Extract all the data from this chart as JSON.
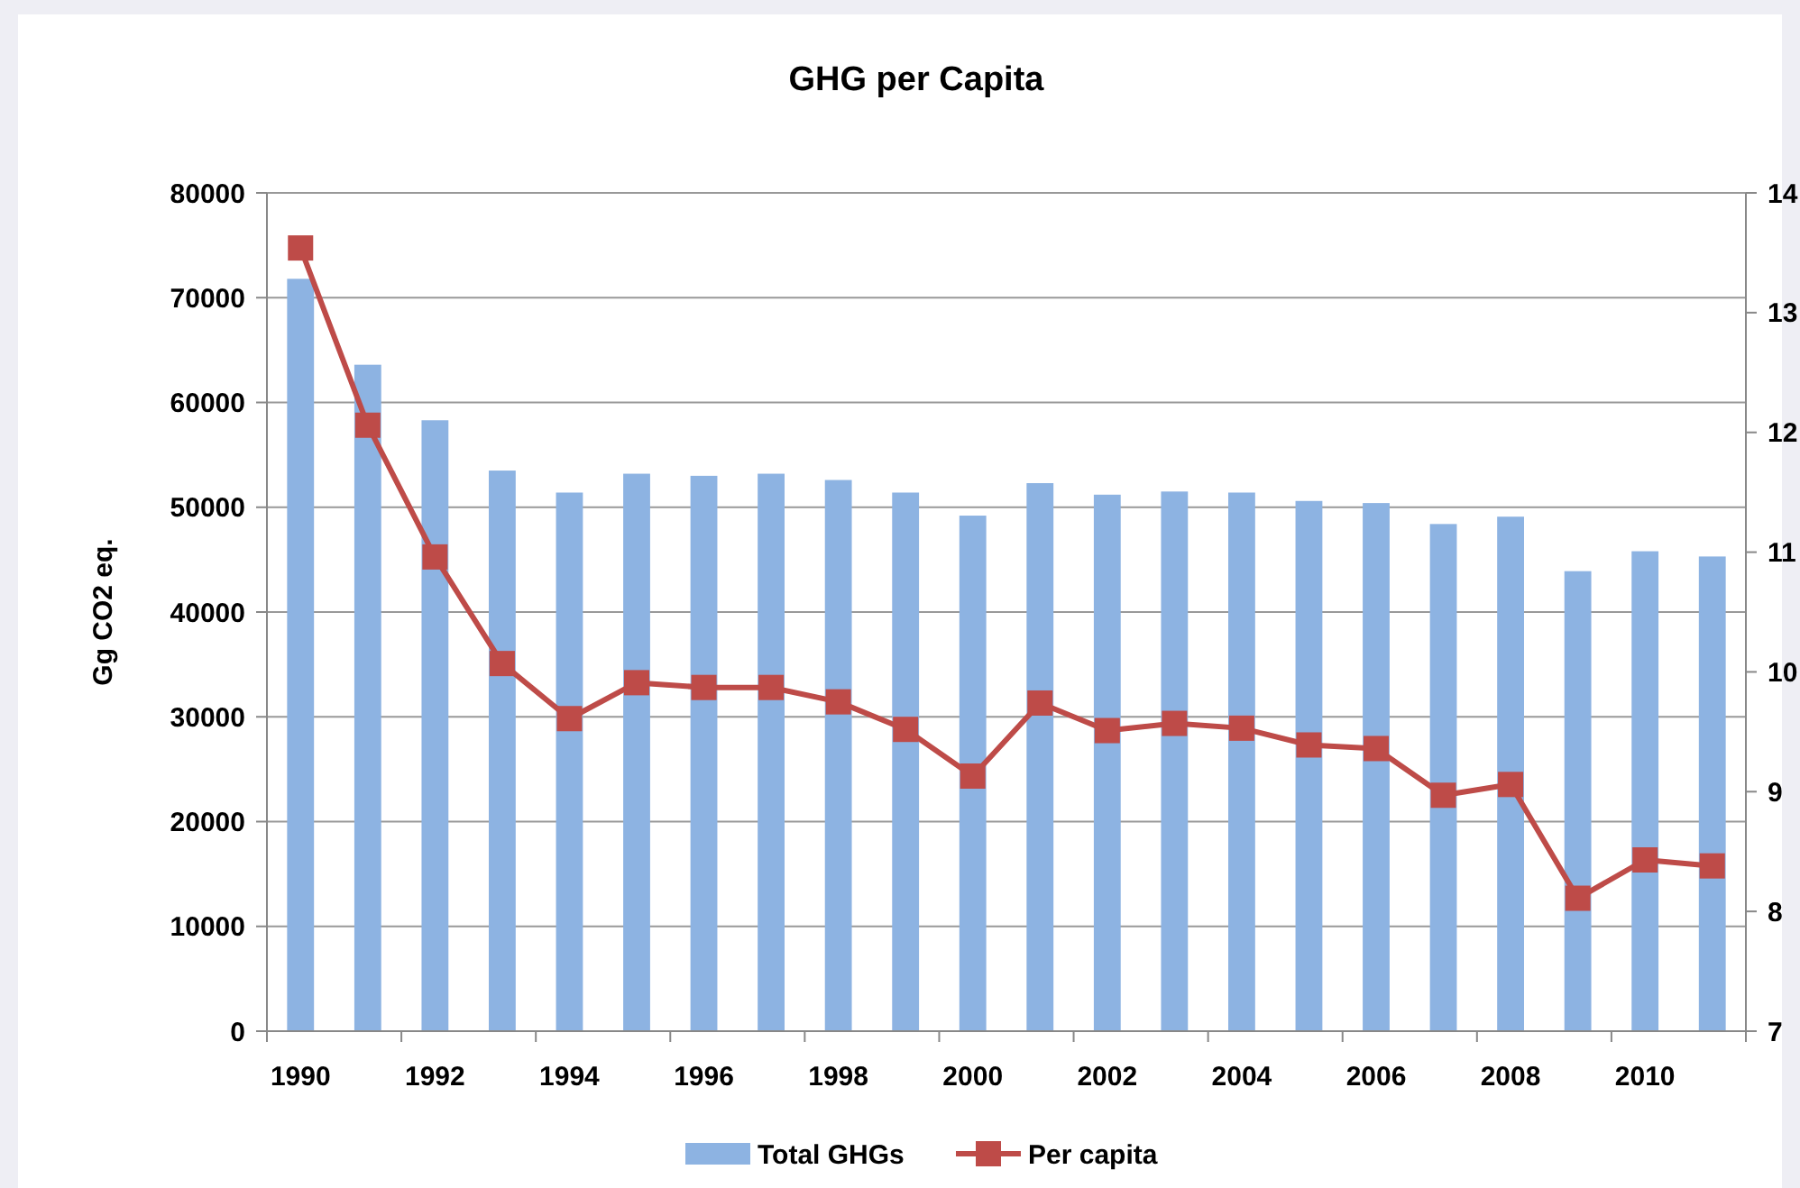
{
  "chart_data": {
    "type": "bar",
    "title": "GHG per Capita",
    "ylabel": "Gg CO2 eq.",
    "categories": [
      "1990",
      null,
      "1992",
      null,
      "1994",
      null,
      "1996",
      null,
      "1998",
      null,
      "2000",
      null,
      "2002",
      null,
      "2004",
      null,
      "2006",
      null,
      "2008",
      null,
      "2010",
      null
    ],
    "series": [
      {
        "name": "Total GHGs",
        "color": "#8db3e2",
        "values": [
          71800,
          63600,
          58300,
          53500,
          51400,
          53200,
          53000,
          53200,
          52600,
          51400,
          49200,
          52300,
          51200,
          51500,
          51400,
          50600,
          50400,
          48400,
          49100,
          43900,
          45800,
          45300
        ]
      },
      {
        "name": "Per capita",
        "type": "line",
        "axis": "y2",
        "color": "#be4b48",
        "marker": "square",
        "values": [
          13.54,
          12.06,
          10.96,
          10.07,
          9.61,
          9.91,
          9.87,
          9.87,
          9.75,
          9.52,
          9.13,
          9.74,
          9.51,
          9.57,
          9.53,
          9.39,
          9.36,
          8.97,
          9.06,
          8.11,
          8.43,
          8.38
        ]
      }
    ],
    "ylim": [
      0,
      80000
    ],
    "yticks": [
      0,
      10000,
      20000,
      30000,
      40000,
      50000,
      60000,
      70000,
      80000
    ],
    "y2lim": [
      7,
      14
    ],
    "y2ticks": [
      7,
      8,
      9,
      10,
      11,
      12,
      13,
      14
    ],
    "grid": "y",
    "legend": "bottom"
  }
}
